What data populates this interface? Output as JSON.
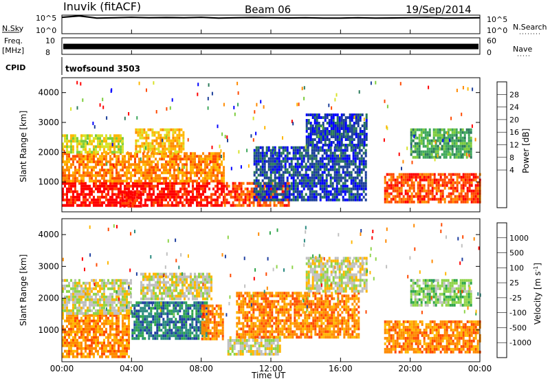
{
  "header": {
    "station": "Inuvik (fitACF)",
    "beam": "Beam 06",
    "date": "19/Sep/2014"
  },
  "chart_data": [
    {
      "type": "line",
      "panel": "noise",
      "left_label": "N.Sky",
      "right_label": "N.Search",
      "left_ticks": [
        "10^5",
        "10^0"
      ],
      "right_ticks": [
        "10^5",
        "10^0"
      ],
      "log_scale": true,
      "ylim": [
        0,
        5
      ],
      "x": [
        0,
        1,
        2,
        3,
        4,
        5,
        6,
        7,
        8,
        9,
        10,
        11,
        12,
        13,
        14,
        15,
        16,
        17,
        18,
        19,
        20,
        21,
        22,
        23,
        24
      ],
      "series": [
        {
          "values": [
            4.4,
            4.8,
            4.2,
            4.3,
            4.4,
            4.3,
            4.35,
            4.3,
            4.4,
            4.2,
            4.3,
            4.35,
            4.3,
            4.25,
            4.3,
            4.2,
            4.2,
            4.3,
            4.2,
            4.25,
            4.3,
            4.35,
            4.2,
            4.25,
            4.3
          ]
        }
      ]
    },
    {
      "type": "line",
      "panel": "frequency",
      "left_label": "Freq.",
      "left_units": "[MHz]",
      "right_label": "Nave",
      "left_ticks": [
        "10",
        "8"
      ],
      "right_ticks": [
        "60",
        "0"
      ],
      "ylim": [
        8,
        10
      ],
      "x": [
        0,
        24
      ],
      "series": [
        {
          "values": [
            8.95,
            8.95
          ]
        }
      ]
    },
    {
      "type": "text",
      "panel": "cpid",
      "label": "CPID",
      "value": "twofsound 3503"
    },
    {
      "type": "heatmap",
      "panel": "power",
      "ylabel": "Slant Range [km]",
      "yticks": [
        "4000",
        "3000",
        "2000",
        "1000"
      ],
      "colorbar_label": "Power [dB]",
      "colorbar_ticks": [
        "28",
        "24",
        "20",
        "16",
        "12",
        "8",
        "4"
      ],
      "colorbar_colors": [
        "#ff0000",
        "#ff4a00",
        "#ff8a00",
        "#ffb700",
        "#d8e32a",
        "#7ccc3c",
        "#3fa85c",
        "#2a7a5a",
        "#1c3f9a",
        "#0000ff"
      ],
      "regions": [
        {
          "t": [
            0.0,
            9.3
          ],
          "r": [
            200,
            1000
          ],
          "level": 0
        },
        {
          "t": [
            0.0,
            9.3
          ],
          "r": [
            1000,
            2000
          ],
          "level": 2
        },
        {
          "t": [
            0.0,
            3.5
          ],
          "r": [
            2000,
            2600
          ],
          "level": 4
        },
        {
          "t": [
            4.2,
            7.0
          ],
          "r": [
            2000,
            2800
          ],
          "level": 3
        },
        {
          "t": [
            3.3,
            4.6
          ],
          "r": [
            200,
            700
          ],
          "level": 0
        },
        {
          "t": [
            9.3,
            13.0
          ],
          "r": [
            200,
            1000
          ],
          "level": 1
        },
        {
          "t": [
            11.0,
            17.5
          ],
          "r": [
            400,
            2200
          ],
          "level": 8
        },
        {
          "t": [
            14.0,
            17.5
          ],
          "r": [
            2200,
            3300
          ],
          "level": 8
        },
        {
          "t": [
            18.5,
            24.0
          ],
          "r": [
            300,
            1300
          ],
          "level": 1
        },
        {
          "t": [
            20.0,
            23.5
          ],
          "r": [
            1800,
            2800
          ],
          "level": 6
        }
      ]
    },
    {
      "type": "heatmap",
      "panel": "velocity",
      "ylabel": "Slant Range [km]",
      "yticks": [
        "4000",
        "3000",
        "2000",
        "1000"
      ],
      "colorbar_label": "Velocity [m s",
      "colorbar_unit_exp": "-1",
      "colorbar_ticks": [
        "1000",
        "500",
        "100",
        "25",
        "-25",
        "-100",
        "-500",
        "-1000"
      ],
      "colorbar_colors": [
        "#1f3fa0",
        "#2a8a80",
        "#2fa64a",
        "#8fd44a",
        "#c0c0c0",
        "#ffb700",
        "#ff8a00",
        "#ff4a00",
        "#ff0000"
      ],
      "regions": [
        {
          "t": [
            0.0,
            3.8
          ],
          "r": [
            200,
            1500
          ],
          "level": 6
        },
        {
          "t": [
            0.0,
            4.0
          ],
          "r": [
            1500,
            2600
          ],
          "level": 4
        },
        {
          "t": [
            4.0,
            8.3
          ],
          "r": [
            700,
            1900
          ],
          "level": 1
        },
        {
          "t": [
            4.5,
            8.6
          ],
          "r": [
            2000,
            2800
          ],
          "level": 4
        },
        {
          "t": [
            8.0,
            9.3
          ],
          "r": [
            700,
            1800
          ],
          "level": 6
        },
        {
          "t": [
            9.5,
            12.5
          ],
          "r": [
            200,
            800
          ],
          "level": 4
        },
        {
          "t": [
            10.0,
            17.0
          ],
          "r": [
            800,
            2200
          ],
          "level": 6
        },
        {
          "t": [
            14.0,
            17.5
          ],
          "r": [
            2200,
            3300
          ],
          "level": 4
        },
        {
          "t": [
            18.5,
            24.0
          ],
          "r": [
            300,
            1300
          ],
          "level": 6
        },
        {
          "t": [
            20.0,
            23.5
          ],
          "r": [
            1800,
            2600
          ],
          "level": 3
        }
      ]
    }
  ],
  "time_axis": {
    "ticks": [
      "00:00",
      "04:00",
      "08:00",
      "12:00",
      "16:00",
      "20:00",
      "00:00"
    ],
    "label": "Time UT"
  }
}
